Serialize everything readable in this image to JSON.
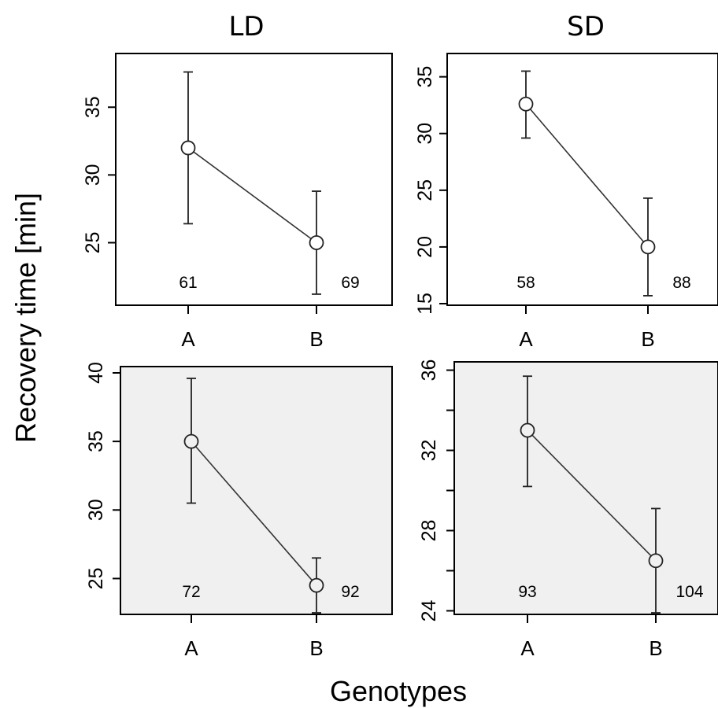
{
  "figure": {
    "column_titles": [
      "LD",
      "SD"
    ],
    "ylabel": "Recovery time [min]",
    "xlabel": "Genotypes"
  },
  "chart_data": [
    {
      "type": "line",
      "panel": "top-left",
      "column": "LD",
      "background": "#ffffff",
      "categories": [
        "A",
        "B"
      ],
      "values": [
        32.0,
        25.0
      ],
      "error_low": [
        26.4,
        21.2
      ],
      "error_high": [
        37.6,
        28.8
      ],
      "n_labels": [
        "61",
        "69"
      ],
      "ylim": [
        20.5,
        38.5
      ],
      "yticks": [
        25,
        30,
        35
      ]
    },
    {
      "type": "line",
      "panel": "top-right",
      "column": "SD",
      "background": "#ffffff",
      "categories": [
        "A",
        "B"
      ],
      "values": [
        32.6,
        20.0
      ],
      "error_low": [
        29.6,
        15.7
      ],
      "error_high": [
        35.5,
        24.3
      ],
      "n_labels": [
        "58",
        "88"
      ],
      "ylim": [
        15.0,
        36.5
      ],
      "yticks": [
        15,
        20,
        25,
        30,
        35
      ]
    },
    {
      "type": "line",
      "panel": "bottom-left",
      "column": "LD",
      "background": "#f0f0f0",
      "categories": [
        "A",
        "B"
      ],
      "values": [
        35.0,
        24.5
      ],
      "error_low": [
        30.5,
        22.5
      ],
      "error_high": [
        39.6,
        26.5
      ],
      "n_labels": [
        "72",
        "92"
      ],
      "ylim": [
        22.5,
        40.0
      ],
      "yticks": [
        25,
        30,
        35,
        40
      ]
    },
    {
      "type": "line",
      "panel": "bottom-right",
      "column": "SD",
      "background": "#f0f0f0",
      "categories": [
        "A",
        "B"
      ],
      "values": [
        33.0,
        26.5
      ],
      "error_low": [
        30.2,
        23.9
      ],
      "error_high": [
        35.7,
        29.1
      ],
      "n_labels": [
        "93",
        "104"
      ],
      "ylim": [
        23.9,
        36.1
      ],
      "yticks": [
        24,
        28,
        32,
        36
      ],
      "minor_yticks": [
        26,
        30,
        34
      ]
    }
  ]
}
